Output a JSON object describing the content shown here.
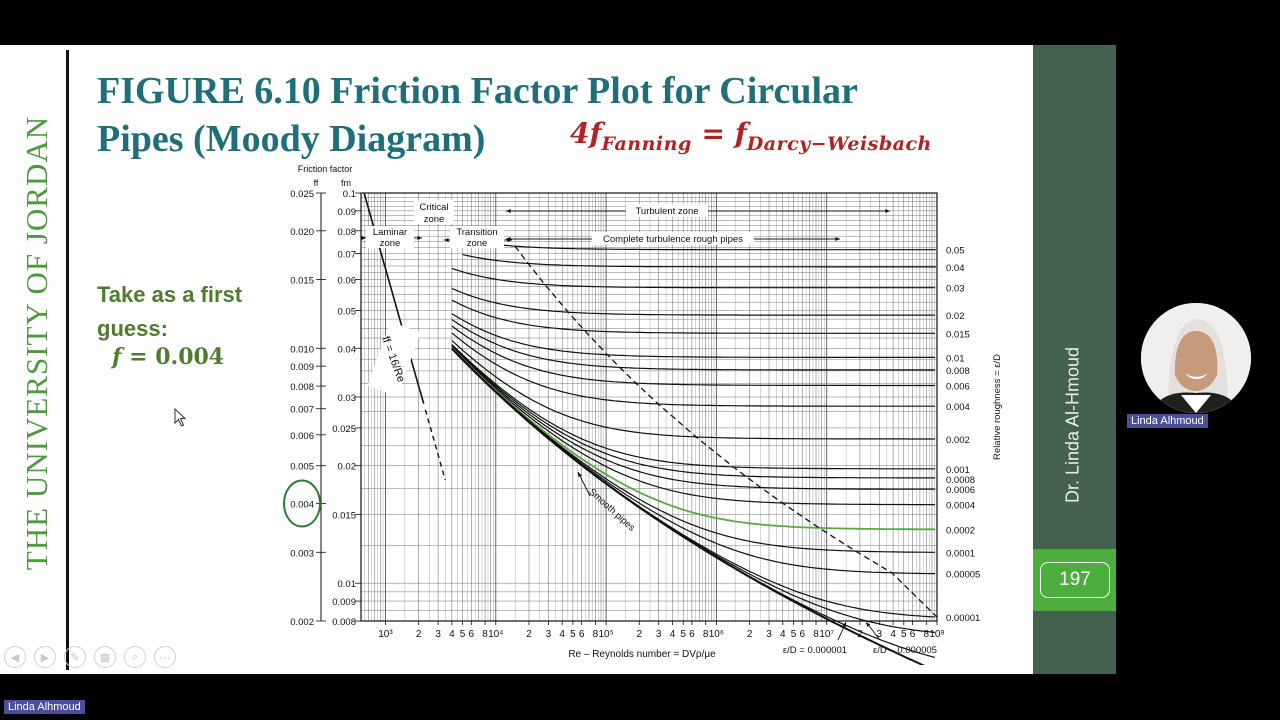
{
  "slide": {
    "vertical_title": "THE UNIVERSITY OF JORDAN",
    "title_line1": "FIGURE 6.10   Friction Factor Plot for Circular",
    "title_line2": "Pipes (Moody Diagram)",
    "formula": {
      "lhs_coef": "4",
      "lhs_f": "f",
      "lhs_sub": "Fanning",
      "eq": " = ",
      "rhs_f": "f",
      "rhs_sub": "Darcy−Weisbach"
    },
    "guess_line1": "Take as a first",
    "guess_line2": "guess:",
    "guess_var": "f",
    "guess_eq": " = 0.004",
    "author": "Dr. Linda Al-Hmoud",
    "page_number": "197"
  },
  "participant": {
    "video_name": "Linda Alhmoud",
    "self_name": "Linda Alhmoud"
  },
  "toolbar": {
    "buttons": [
      {
        "name": "prev-slide-icon",
        "glyph": "◀"
      },
      {
        "name": "next-slide-icon",
        "glyph": "▶"
      },
      {
        "name": "pen-icon",
        "glyph": "✎"
      },
      {
        "name": "slides-grid-icon",
        "glyph": "▦"
      },
      {
        "name": "zoom-icon",
        "glyph": "⌕"
      },
      {
        "name": "more-options-icon",
        "glyph": "⋯"
      }
    ]
  },
  "colors": {
    "title": "#1e6f7b",
    "formula": "#b22222",
    "accent_green": "#4e9a3f",
    "panel": "#44604f",
    "page_box": "#4caf3d",
    "highlight_curve": "#5aa845"
  },
  "chart_data": {
    "type": "line",
    "title": "",
    "xlabel": "Re – Reynolds number = DVρ/μe",
    "ylabel_left": "Friction factor",
    "ylabel_fanning": "ff",
    "ylabel_darcy": "fm",
    "ylabel_right": "Relative roughness = ε/D",
    "x_scale": "log",
    "xlim": [
      600,
      100000000
    ],
    "y_scale": "log",
    "ylim_darcy": [
      0.008,
      0.1
    ],
    "x_tick_labels": [
      {
        "value": 1000,
        "label": "10³"
      },
      {
        "value": 2000,
        "label": "2"
      },
      {
        "value": 3000,
        "label": "3"
      },
      {
        "value": 4000,
        "label": "4"
      },
      {
        "value": 5000,
        "label": "5"
      },
      {
        "value": 6000,
        "label": "6"
      },
      {
        "value": 8000,
        "label": "8"
      },
      {
        "value": 10000,
        "label": "10⁴"
      },
      {
        "value": 20000,
        "label": "2"
      },
      {
        "value": 30000,
        "label": "3"
      },
      {
        "value": 40000,
        "label": "4"
      },
      {
        "value": 50000,
        "label": "5"
      },
      {
        "value": 60000,
        "label": "6"
      },
      {
        "value": 80000,
        "label": "8"
      },
      {
        "value": 100000,
        "label": "10⁵"
      },
      {
        "value": 200000,
        "label": "2"
      },
      {
        "value": 300000,
        "label": "3"
      },
      {
        "value": 400000,
        "label": "4"
      },
      {
        "value": 500000,
        "label": "5"
      },
      {
        "value": 600000,
        "label": "6"
      },
      {
        "value": 800000,
        "label": "8"
      },
      {
        "value": 1000000,
        "label": "10⁶"
      },
      {
        "value": 2000000,
        "label": "2"
      },
      {
        "value": 3000000,
        "label": "3"
      },
      {
        "value": 4000000,
        "label": "4"
      },
      {
        "value": 5000000,
        "label": "5"
      },
      {
        "value": 6000000,
        "label": "6"
      },
      {
        "value": 8000000,
        "label": "8"
      },
      {
        "value": 10000000,
        "label": "10⁷"
      },
      {
        "value": 20000000,
        "label": "2"
      },
      {
        "value": 30000000,
        "label": "3"
      },
      {
        "value": 40000000,
        "label": "4"
      },
      {
        "value": 50000000,
        "label": "5"
      },
      {
        "value": 60000000,
        "label": "6"
      },
      {
        "value": 80000000,
        "label": "8"
      },
      {
        "value": 100000000,
        "label": "10⁸"
      }
    ],
    "y_ticks_darcy": [
      {
        "value": 0.1,
        "label": "0.1"
      },
      {
        "value": 0.09,
        "label": "0.09"
      },
      {
        "value": 0.08,
        "label": "0.08"
      },
      {
        "value": 0.07,
        "label": "0.07"
      },
      {
        "value": 0.06,
        "label": "0.06"
      },
      {
        "value": 0.05,
        "label": "0.05"
      },
      {
        "value": 0.04,
        "label": "0.04"
      },
      {
        "value": 0.03,
        "label": "0.03"
      },
      {
        "value": 0.025,
        "label": "0.025"
      },
      {
        "value": 0.02,
        "label": "0.02"
      },
      {
        "value": 0.015,
        "label": "0.015"
      },
      {
        "value": 0.01,
        "label": "0.01"
      },
      {
        "value": 0.009,
        "label": "0.009"
      },
      {
        "value": 0.008,
        "label": "0.008"
      }
    ],
    "y_ticks_fanning": [
      {
        "value": 0.025,
        "label": "0.025"
      },
      {
        "value": 0.02,
        "label": "0.020"
      },
      {
        "value": 0.015,
        "label": "0.015"
      },
      {
        "value": 0.01,
        "label": "0.010"
      },
      {
        "value": 0.009,
        "label": "0.009"
      },
      {
        "value": 0.008,
        "label": "0.008"
      },
      {
        "value": 0.007,
        "label": "0.007"
      },
      {
        "value": 0.006,
        "label": "0.006"
      },
      {
        "value": 0.005,
        "label": "0.005"
      },
      {
        "value": 0.004,
        "label": "0.004",
        "circled": true
      },
      {
        "value": 0.003,
        "label": "0.003"
      },
      {
        "value": 0.002,
        "label": "0.002"
      }
    ],
    "relative_roughness": [
      {
        "value": 0.05,
        "label": "0.05"
      },
      {
        "value": 0.04,
        "label": "0.04"
      },
      {
        "value": 0.03,
        "label": "0.03"
      },
      {
        "value": 0.02,
        "label": "0.02"
      },
      {
        "value": 0.015,
        "label": "0.015"
      },
      {
        "value": 0.01,
        "label": "0.01"
      },
      {
        "value": 0.008,
        "label": "0.008"
      },
      {
        "value": 0.006,
        "label": "0.006"
      },
      {
        "value": 0.004,
        "label": "0.004"
      },
      {
        "value": 0.002,
        "label": "0.002"
      },
      {
        "value": 0.001,
        "label": "0.001"
      },
      {
        "value": 0.0008,
        "label": "0.0008"
      },
      {
        "value": 0.0006,
        "label": "0.0006"
      },
      {
        "value": 0.0004,
        "label": "0.0004"
      },
      {
        "value": 0.0002,
        "label": "0.0002",
        "highlighted": true
      },
      {
        "value": 0.0001,
        "label": "0.0001"
      },
      {
        "value": 5e-05,
        "label": "0.00005"
      },
      {
        "value": 1e-05,
        "label": "0.00001"
      }
    ],
    "extra_curves": [
      {
        "value": 1e-06,
        "label": "ε/D = 0.000001"
      },
      {
        "value": 5e-06,
        "label": "ε/D = 0.000005"
      }
    ],
    "annotations": {
      "laminar": "Laminar zone",
      "critical": "Critical zone",
      "transition": "Transition zone",
      "turbulent": "Turbulent zone",
      "complete_turbulence": "Complete turbulence rough pipes",
      "smooth": "Smooth pipes",
      "laminar_eq": "ff = 16/Re",
      "label_1e6": "ε/D = 0.000001",
      "label_5e6": "ε/D – 0.000005"
    },
    "grid": true
  }
}
